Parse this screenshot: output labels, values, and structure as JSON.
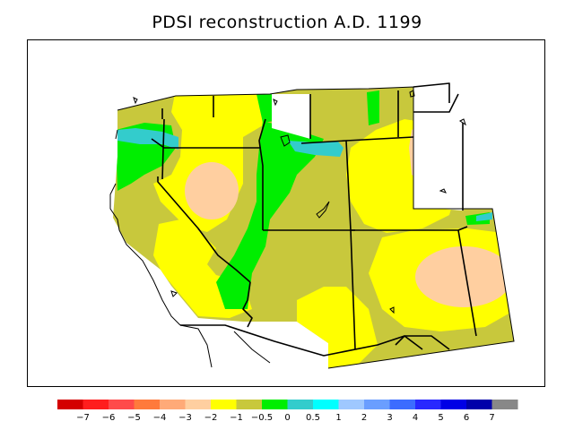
{
  "title": "PDSI reconstruction A.D. 1199",
  "legend": {
    "colors": [
      "#d40000",
      "#ff1e1e",
      "#ff4a4a",
      "#ff7a3c",
      "#ffaa78",
      "#ffcfa0",
      "#ffff00",
      "#c8c83c",
      "#00ee00",
      "#33cccc",
      "#00ffff",
      "#9fc8ff",
      "#6a9eff",
      "#3c6cff",
      "#2828ff",
      "#0000e6",
      "#0000aa",
      "#888888"
    ],
    "labels": [
      "−7",
      "−6",
      "−5",
      "−4",
      "−3",
      "−2",
      "−1",
      "−0.5",
      "0",
      "0.5",
      "1",
      "2",
      "3",
      "4",
      "5",
      "6",
      "7"
    ]
  },
  "map": {
    "colors": {
      "bg": "#c8c83c",
      "yellow": "#ffff00",
      "green": "#00ee00",
      "peach": "#ffcfa0",
      "teal": "#33cccc",
      "white": "#ffffff",
      "border": "#000000"
    }
  }
}
